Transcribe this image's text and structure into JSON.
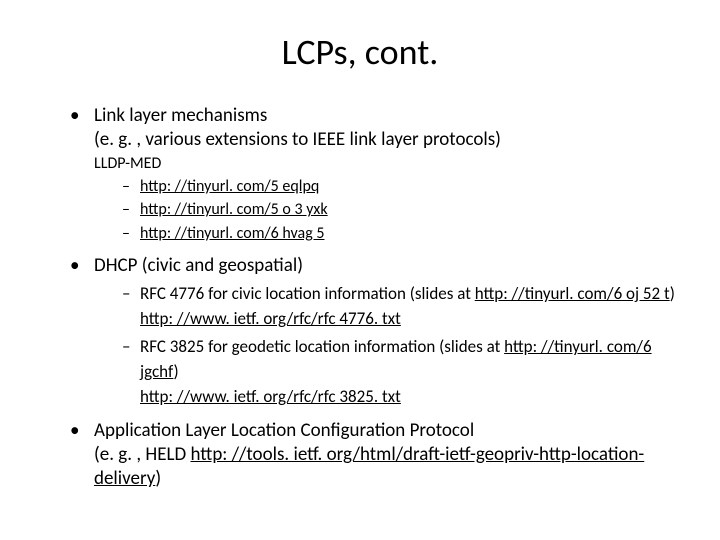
{
  "title": "LCPs, cont.",
  "colors": {
    "background": "#ffffff",
    "text": "#000000",
    "link": "#000000"
  },
  "fonts": {
    "family": "Calibri",
    "title_size_pt": 36,
    "body_size_pt": 19,
    "sub_size_pt": 16,
    "dash_size_pt": 17
  },
  "bullets": [
    {
      "line1": "Link layer mechanisms",
      "line2": "(e. g. , various extensions to IEEE link layer protocols)",
      "sub_label": "LLDP-MED",
      "links": [
        "http: //tinyurl. com/5 eqlpq",
        "http: //tinyurl. com/5 o 3 yxk",
        "http: //tinyurl. com/6 hvag 5"
      ]
    },
    {
      "line1": "DHCP (civic and geospatial)",
      "items": [
        {
          "prefix": "RFC 4776 for civic location information (slides at ",
          "slides_link": "http: //tinyurl. com/6 oj 52 t",
          "suffix": ")",
          "url": "http: //www. ietf. org/rfc/rfc 4776. txt"
        },
        {
          "prefix": "RFC 3825 for geodetic location information (slides at ",
          "slides_link": "http: //tinyurl. com/6 jgchf",
          "suffix": ")",
          "url": "http: //www. ietf. org/rfc/rfc 3825. txt"
        }
      ]
    },
    {
      "line1": "Application Layer Location Configuration Protocol",
      "line2_prefix": "(e. g. , HELD ",
      "line2_link": "http: //tools. ietf. org/html/draft-ietf-geopriv-http-location-delivery",
      "line2_suffix": ")"
    }
  ]
}
